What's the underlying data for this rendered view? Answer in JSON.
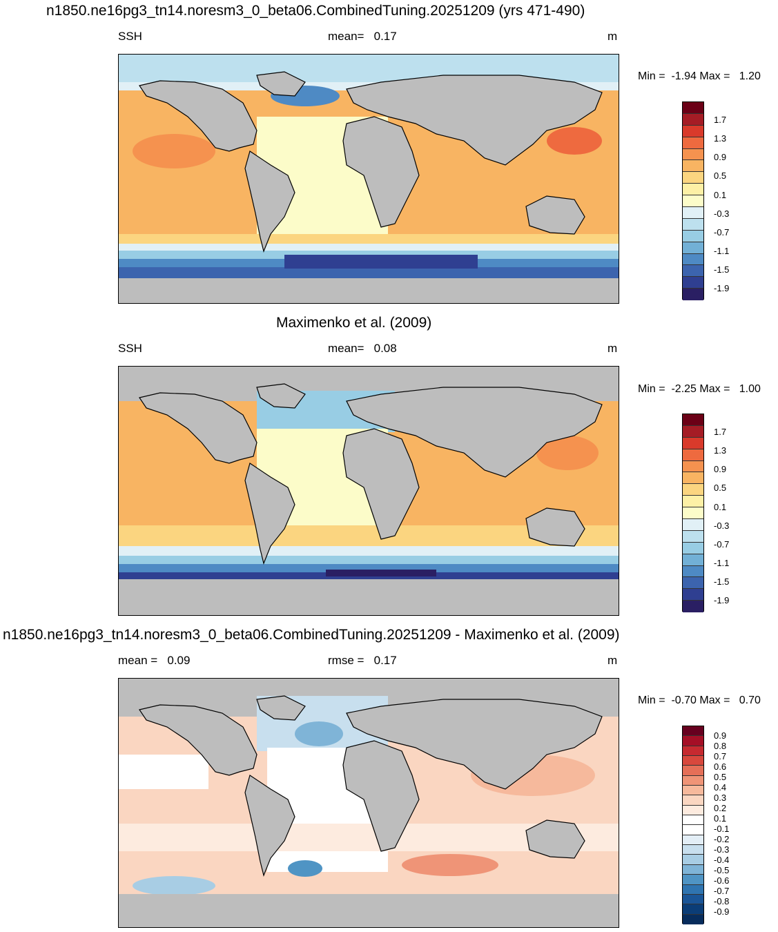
{
  "panel1": {
    "title": "n1850.ne16pg3_tn14.noresm3_0_beta06.CombinedTuning.20251209 (yrs 471-490)",
    "variable": "SSH",
    "mean_label": "mean=",
    "mean_value": "0.17",
    "units": "m",
    "min_label": "Min =",
    "min_value": "-1.94",
    "max_label": "Max =",
    "max_value": "1.20",
    "ticks": [
      "1.7",
      "1.3",
      "0.9",
      "0.5",
      "0.1",
      "-0.3",
      "-0.7",
      "-1.1",
      "-1.5",
      "-1.9"
    ]
  },
  "panel2": {
    "title": "Maximenko et al. (2009)",
    "variable": "SSH",
    "mean_label": "mean=",
    "mean_value": "0.08",
    "units": "m",
    "min_label": "Min =",
    "min_value": "-2.25",
    "max_label": "Max =",
    "max_value": "1.00",
    "ticks": [
      "1.7",
      "1.3",
      "0.9",
      "0.5",
      "0.1",
      "-0.3",
      "-0.7",
      "-1.1",
      "-1.5",
      "-1.9"
    ]
  },
  "panel3": {
    "title": "n1850.ne16pg3_tn14.noresm3_0_beta06.CombinedTuning.20251209 - Maximenko et al. (2009)",
    "mean_label": "mean =",
    "mean_value": "0.09",
    "rmse_label": "rmse =",
    "rmse_value": "0.17",
    "units": "m",
    "min_label": "Min =",
    "min_value": "-0.70",
    "max_label": "Max =",
    "max_value": "0.70",
    "ticks": [
      "0.9",
      "0.8",
      "0.7",
      "0.6",
      "0.5",
      "0.4",
      "0.3",
      "0.2",
      "0.1",
      "-0.1",
      "-0.2",
      "-0.3",
      "-0.4",
      "-0.5",
      "-0.6",
      "-0.7",
      "-0.8",
      "-0.9"
    ]
  },
  "colors": {
    "land": "#bdbdbd",
    "ssh_scale": [
      "#6b0016",
      "#a51c25",
      "#d93a2b",
      "#ee6a3f",
      "#f5924f",
      "#f8b462",
      "#fbd580",
      "#fdf0a6",
      "#fcfcc9",
      "#e1f0f6",
      "#bde0ee",
      "#98cde4",
      "#72b0d6",
      "#4e8ac4",
      "#3c64ae",
      "#2f3f91",
      "#2a1f63"
    ],
    "diff_scale": [
      "#67001f",
      "#a50f26",
      "#c62a30",
      "#d8483d",
      "#e56f58",
      "#ef9477",
      "#f6b99c",
      "#fad6c1",
      "#fdebdf",
      "#ffffff",
      "#ffffff",
      "#e3eef6",
      "#c8dfee",
      "#a8cde4",
      "#7fb4d7",
      "#4f94c4",
      "#2f74b0",
      "#1a5597",
      "#0b3d77",
      "#072c5c"
    ]
  }
}
